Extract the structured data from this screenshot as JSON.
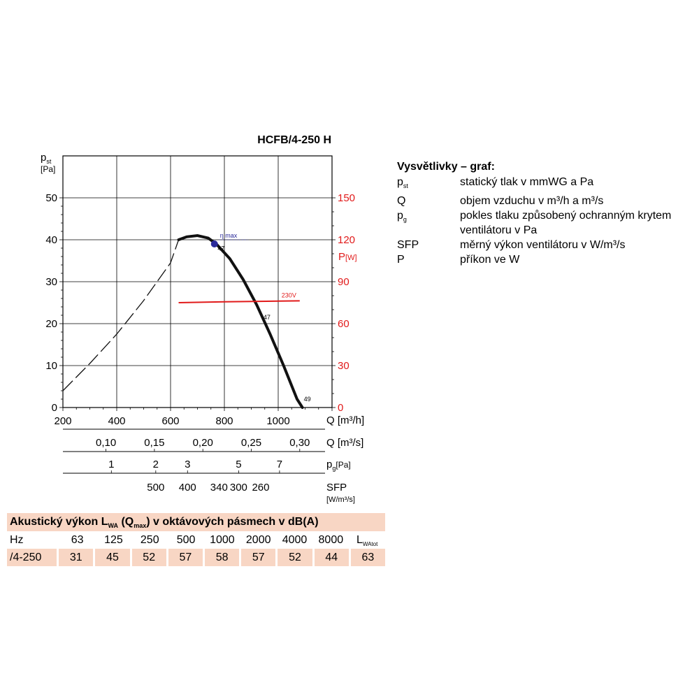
{
  "chart_data": {
    "type": "line",
    "title": "HCFB/4-250 H",
    "ylabel": "p",
    "ylabel_sub": "st",
    "ylabel_unit": "[Pa]",
    "y2label": "P",
    "y2label_unit": "[W]",
    "xlabel": "Q [m³/h]",
    "xlim": [
      200,
      1200
    ],
    "ylim": [
      0,
      60
    ],
    "y2lim": [
      0,
      180
    ],
    "grid": true,
    "x_ticks": [
      "200",
      "400",
      "600",
      "800",
      "1000"
    ],
    "y_ticks": [
      "0",
      "10",
      "20",
      "30",
      "40",
      "50"
    ],
    "y2_ticks": [
      "0",
      "30",
      "60",
      "90",
      "120",
      "150"
    ],
    "pressure_curve_dashed": {
      "x": [
        200,
        300,
        400,
        500,
        600,
        630
      ],
      "y": [
        4,
        10.5,
        17.5,
        25.5,
        34.5,
        40
      ]
    },
    "pressure_curve": {
      "x": [
        630,
        660,
        700,
        740,
        770,
        820,
        870,
        920,
        970,
        1020,
        1070,
        1090
      ],
      "y": [
        40,
        40.7,
        41,
        40.4,
        39,
        35.5,
        30.5,
        24.5,
        17.5,
        10,
        2,
        0
      ]
    },
    "power_curve": {
      "name": "230V",
      "x": [
        630,
        800,
        1000,
        1080
      ],
      "y": [
        75,
        75.6,
        76.1,
        76.3
      ]
    },
    "eta_max": {
      "label": "η max",
      "x": 763,
      "y": 39
    },
    "point_labels": [
      {
        "text": "47",
        "x": 775,
        "y": 37.4
      },
      {
        "text": "47",
        "x": 945,
        "y": 21
      },
      {
        "text": "49",
        "x": 1095,
        "y": 1.5
      }
    ],
    "secondary_scales": [
      {
        "label": "Q [m³/s]",
        "ticks": [
          {
            "text": "0,10",
            "q": 360
          },
          {
            "text": "0,15",
            "q": 540
          },
          {
            "text": "0,20",
            "q": 720
          },
          {
            "text": "0,25",
            "q": 900
          },
          {
            "text": "0,30",
            "q": 1080
          }
        ]
      },
      {
        "label": "pg[Pa]",
        "ticks": [
          {
            "text": "1",
            "q": 380
          },
          {
            "text": "2",
            "q": 545
          },
          {
            "text": "3",
            "q": 663
          },
          {
            "text": "5",
            "q": 853
          },
          {
            "text": "7",
            "q": 1005
          }
        ]
      },
      {
        "label": "SFP",
        "unit": "[W/m³/s]",
        "ticks": [
          {
            "text": "500",
            "q": 545
          },
          {
            "text": "400",
            "q": 663
          },
          {
            "text": "340",
            "q": 780
          },
          {
            "text": "300",
            "q": 853
          },
          {
            "text": "260",
            "q": 935
          }
        ]
      }
    ]
  },
  "legend": {
    "title": "Vysvětlivky – graf:",
    "items": [
      {
        "symbol": "p",
        "sub": "st",
        "desc": "statický tlak v mmWG a Pa"
      },
      {
        "symbol": "Q",
        "sub": "",
        "desc": "objem vzduchu v m³/h a m³/s"
      },
      {
        "symbol": "p",
        "sub": "g",
        "desc": "pokles tlaku způsobený ochranným krytem ventilátoru v Pa"
      },
      {
        "symbol": "SFP",
        "sub": "",
        "desc": "měrný výkon ventilátoru v W/m³/s"
      },
      {
        "symbol": "P",
        "sub": "",
        "desc": "příkon ve W"
      }
    ]
  },
  "acoustic": {
    "title_part1": "Akustický výkon L",
    "title_sub1": "WA",
    "title_part2": " (Q",
    "title_sub2": "max",
    "title_part3": ") v oktávových pásmech v dB(A)",
    "hz_label": "Hz",
    "bands": [
      "63",
      "125",
      "250",
      "500",
      "1000",
      "2000",
      "4000",
      "8000"
    ],
    "total_label": "L",
    "total_sub": "WAtot",
    "row_label": "/4-250",
    "values": [
      "31",
      "45",
      "52",
      "57",
      "58",
      "57",
      "52",
      "44",
      "63"
    ]
  },
  "colors": {
    "curve": "#111111",
    "power": "#e11a1a",
    "power_axis": "#e11a1a",
    "eta": "#2a2a9a",
    "table_bg": "#f8d6c4"
  }
}
